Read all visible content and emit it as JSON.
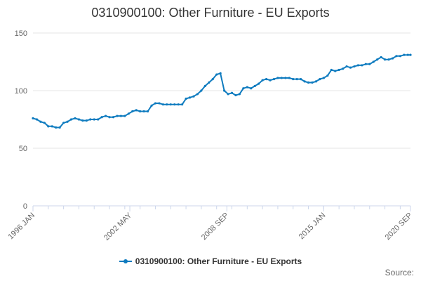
{
  "chart_data": {
    "type": "line",
    "title": "0310900100: Other Furniture - EU Exports",
    "xlabel": "",
    "ylabel": "",
    "ylim": [
      0,
      150
    ],
    "yticks": [
      0,
      50,
      100,
      150
    ],
    "xlim": [
      1996.0,
      2020.67
    ],
    "x_tick_labels": [
      {
        "label": "1996 JAN",
        "x": 1996.0
      },
      {
        "label": "2002 MAY",
        "x": 2002.33
      },
      {
        "label": "2008 SEP",
        "x": 2008.67
      },
      {
        "label": "2015 JAN",
        "x": 2015.0
      },
      {
        "label": "2020 SEP",
        "x": 2020.67
      }
    ],
    "grid": true,
    "legend_position": "bottom",
    "color": "#0e7bbf",
    "series": [
      {
        "name": "0310900100: Other Furniture - EU Exports",
        "x": [
          1996.0,
          1996.25,
          1996.5,
          1996.75,
          1997.0,
          1997.25,
          1997.5,
          1997.75,
          1998.0,
          1998.25,
          1998.5,
          1998.75,
          1999.0,
          1999.25,
          1999.5,
          1999.75,
          2000.0,
          2000.25,
          2000.5,
          2000.75,
          2001.0,
          2001.25,
          2001.5,
          2001.75,
          2002.0,
          2002.25,
          2002.5,
          2002.75,
          2003.0,
          2003.25,
          2003.5,
          2003.75,
          2004.0,
          2004.25,
          2004.5,
          2004.75,
          2005.0,
          2005.25,
          2005.5,
          2005.75,
          2006.0,
          2006.25,
          2006.5,
          2006.75,
          2007.0,
          2007.25,
          2007.5,
          2007.75,
          2008.0,
          2008.25,
          2008.5,
          2008.75,
          2009.0,
          2009.25,
          2009.5,
          2009.75,
          2010.0,
          2010.25,
          2010.5,
          2010.75,
          2011.0,
          2011.25,
          2011.5,
          2011.75,
          2012.0,
          2012.25,
          2012.5,
          2012.75,
          2013.0,
          2013.25,
          2013.5,
          2013.75,
          2014.0,
          2014.25,
          2014.5,
          2014.75,
          2015.0,
          2015.25,
          2015.5,
          2015.75,
          2016.0,
          2016.25,
          2016.5,
          2016.75,
          2017.0,
          2017.25,
          2017.5,
          2017.75,
          2018.0,
          2018.25,
          2018.5,
          2018.75,
          2019.0,
          2019.25,
          2019.5,
          2019.75,
          2020.0,
          2020.25,
          2020.5,
          2020.67
        ],
        "values": [
          76,
          75,
          73,
          72,
          69,
          69,
          68,
          68,
          72,
          73,
          75,
          76,
          75,
          74,
          74,
          75,
          75,
          75,
          77,
          78,
          77,
          77,
          78,
          78,
          78,
          80,
          82,
          83,
          82,
          82,
          82,
          87,
          89,
          89,
          88,
          88,
          88,
          88,
          88,
          88,
          93,
          94,
          95,
          97,
          100,
          104,
          107,
          110,
          114,
          115,
          100,
          97,
          98,
          96,
          97,
          102,
          103,
          102,
          104,
          106,
          109,
          110,
          109,
          110,
          111,
          111,
          111,
          111,
          110,
          110,
          110,
          108,
          107,
          107,
          108,
          110,
          111,
          113,
          118,
          117,
          118,
          119,
          121,
          120,
          121,
          122,
          122,
          123,
          123,
          125,
          127,
          129,
          127,
          127,
          128,
          130,
          130,
          131,
          131,
          131
        ]
      }
    ]
  },
  "credits": "Source:"
}
